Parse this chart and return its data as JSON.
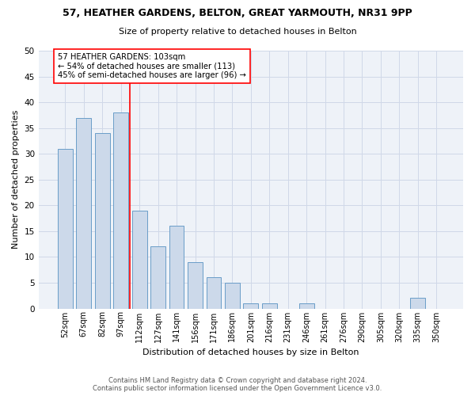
{
  "title_line1": "57, HEATHER GARDENS, BELTON, GREAT YARMOUTH, NR31 9PP",
  "title_line2": "Size of property relative to detached houses in Belton",
  "xlabel": "Distribution of detached houses by size in Belton",
  "ylabel": "Number of detached properties",
  "bar_color": "#ccd9ea",
  "bar_edge_color": "#6a9dc8",
  "categories": [
    "52sqm",
    "67sqm",
    "82sqm",
    "97sqm",
    "112sqm",
    "127sqm",
    "141sqm",
    "156sqm",
    "171sqm",
    "186sqm",
    "201sqm",
    "216sqm",
    "231sqm",
    "246sqm",
    "261sqm",
    "276sqm",
    "290sqm",
    "305sqm",
    "320sqm",
    "335sqm",
    "350sqm"
  ],
  "values": [
    31,
    37,
    34,
    38,
    19,
    12,
    16,
    9,
    6,
    5,
    1,
    1,
    0,
    1,
    0,
    0,
    0,
    0,
    0,
    2,
    0
  ],
  "vline_x_index": 3.5,
  "annotation_line1": "57 HEATHER GARDENS: 103sqm",
  "annotation_line2": "← 54% of detached houses are smaller (113)",
  "annotation_line3": "45% of semi-detached houses are larger (96) →",
  "ylim": [
    0,
    50
  ],
  "yticks": [
    0,
    5,
    10,
    15,
    20,
    25,
    30,
    35,
    40,
    45,
    50
  ],
  "footer_line1": "Contains HM Land Registry data © Crown copyright and database right 2024.",
  "footer_line2": "Contains public sector information licensed under the Open Government Licence v3.0.",
  "grid_color": "#d0d8e8",
  "background_color": "#eef2f8"
}
